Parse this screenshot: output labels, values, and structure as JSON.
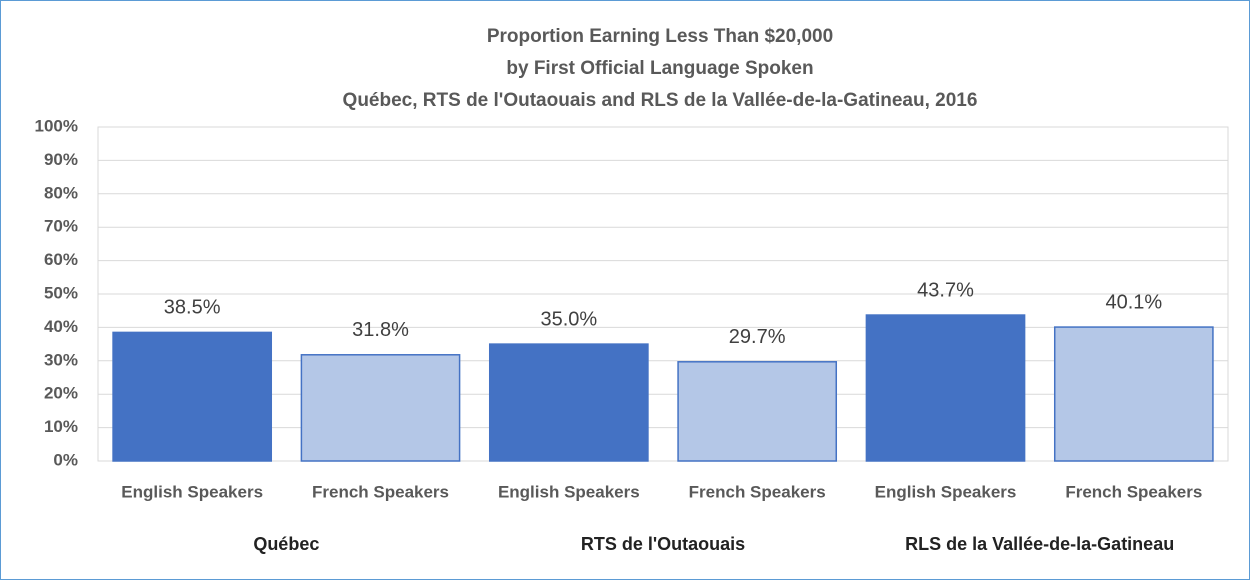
{
  "chart_data": {
    "type": "bar",
    "title": [
      "Proportion Earning Less Than $20,000",
      "by First Official Language Spoken",
      "Québec, RTS de l'Outaouais and RLS de la Vallée-de-la-Gatineau, 2016"
    ],
    "categories": [
      "Québec",
      "RTS de l'Outaouais",
      "RLS de la Vallée-de-la-Gatineau"
    ],
    "series": [
      {
        "name": "English Speakers",
        "color": "#4472c4",
        "values": [
          38.5,
          35.0,
          43.7
        ],
        "value_labels": [
          "38.5%",
          "35.0%",
          "43.7%"
        ]
      },
      {
        "name": "French Speakers",
        "color": "#b4c7e7",
        "values": [
          31.8,
          29.7,
          40.1
        ],
        "value_labels": [
          "31.8%",
          "29.7%",
          "40.1%"
        ]
      }
    ],
    "ylim": [
      0,
      100
    ],
    "yticks": [
      {
        "value": 0,
        "label": "0%"
      },
      {
        "value": 10,
        "label": "10%"
      },
      {
        "value": 20,
        "label": "20%"
      },
      {
        "value": 30,
        "label": "30%"
      },
      {
        "value": 40,
        "label": "40%"
      },
      {
        "value": 50,
        "label": "50%"
      },
      {
        "value": 60,
        "label": "60%"
      },
      {
        "value": 70,
        "label": "70%"
      },
      {
        "value": 80,
        "label": "80%"
      },
      {
        "value": 90,
        "label": "90%"
      },
      {
        "value": 100,
        "label": "100%"
      }
    ],
    "grid": true
  }
}
